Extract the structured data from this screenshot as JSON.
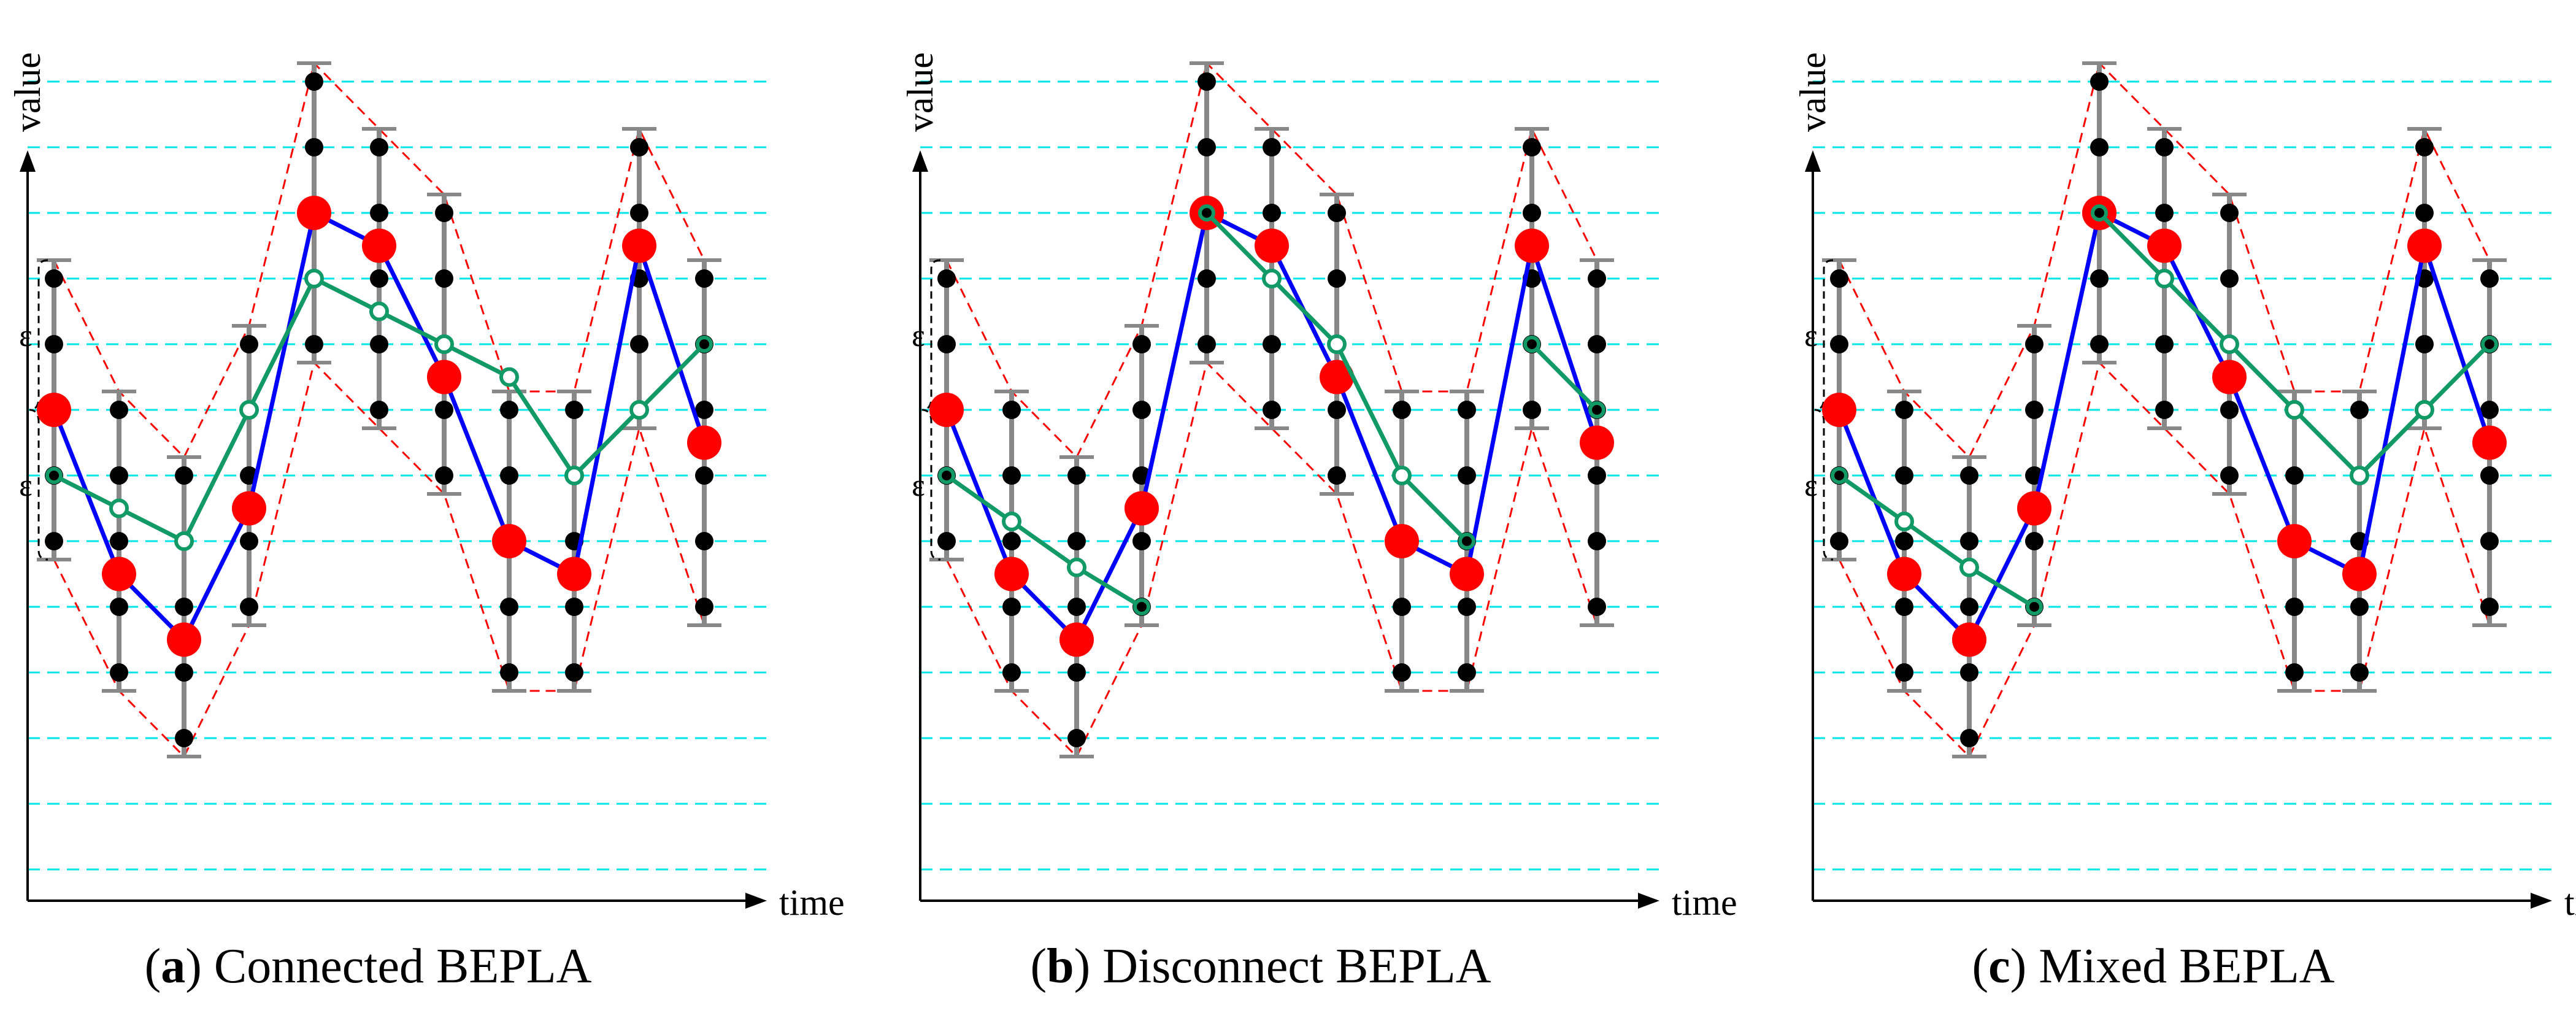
{
  "figure": {
    "panels": [
      {
        "id": "a",
        "letter": "a",
        "title": "Connected BEPLA"
      },
      {
        "id": "b",
        "letter": "b",
        "title": "Disconnect BEPLA"
      },
      {
        "id": "c",
        "letter": "c",
        "title": "Mixed BEPLA"
      }
    ],
    "axis_labels": {
      "x": "time",
      "y": "value"
    },
    "epsilon_label": "ε"
  },
  "chart_data": {
    "type": "diagram",
    "time_points": [
      1,
      2,
      3,
      4,
      5,
      6,
      7,
      8,
      9,
      10,
      11
    ],
    "original_values": [
      7.0,
      4.5,
      3.5,
      5.5,
      10.0,
      9.5,
      7.5,
      5.0,
      4.5,
      9.5,
      6.5
    ],
    "epsilon_levels": 2,
    "quantized_levels_ymin_ymax": [
      0,
      12
    ],
    "error_bounds": {
      "lower": [
        5,
        3,
        2,
        4,
        8,
        7,
        6,
        3,
        3,
        7,
        4
      ],
      "upper": [
        9,
        7,
        6,
        8,
        12,
        11,
        10,
        7,
        7,
        11,
        9
      ]
    },
    "series_colors": {
      "original": "#0000ff",
      "points": "#ff0000",
      "approx": "#119966",
      "bounds": "#ff0000",
      "grid": "#00e5e5"
    },
    "panels": [
      {
        "id": "a",
        "name": "Connected BEPLA",
        "approx_segments": [
          [
            [
              1,
              6
            ],
            [
              2,
              5.5
            ],
            [
              3,
              5
            ],
            [
              4,
              7
            ],
            [
              5,
              9
            ],
            [
              6,
              8.5
            ],
            [
              7,
              8
            ],
            [
              8,
              7.5
            ],
            [
              9,
              6
            ],
            [
              10,
              7
            ],
            [
              11,
              8
            ]
          ]
        ]
      },
      {
        "id": "b",
        "name": "Disconnect BEPLA",
        "approx_segments": [
          [
            [
              1,
              6
            ],
            [
              2,
              5.3
            ],
            [
              3,
              4.6
            ],
            [
              4,
              4
            ]
          ],
          [
            [
              5,
              10
            ],
            [
              6,
              9
            ],
            [
              7,
              8
            ],
            [
              8,
              6
            ],
            [
              9,
              5
            ]
          ],
          [
            [
              10,
              8
            ],
            [
              11,
              7
            ]
          ]
        ]
      },
      {
        "id": "c",
        "name": "Mixed BEPLA",
        "approx_segments": [
          [
            [
              1,
              6
            ],
            [
              2,
              5.3
            ],
            [
              3,
              4.6
            ],
            [
              4,
              4
            ]
          ],
          [
            [
              5,
              10
            ],
            [
              6,
              9
            ],
            [
              7,
              8
            ],
            [
              8,
              7
            ],
            [
              9,
              6
            ],
            [
              10,
              7
            ],
            [
              11,
              8
            ]
          ]
        ]
      }
    ]
  }
}
